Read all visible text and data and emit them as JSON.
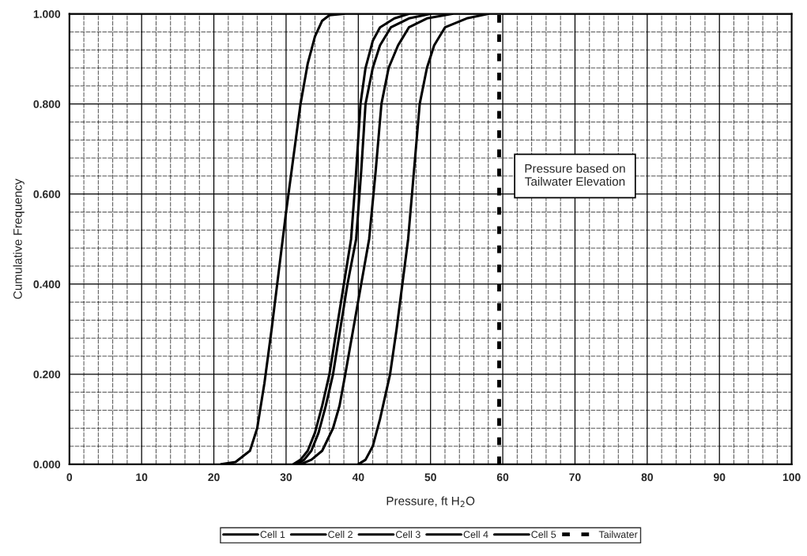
{
  "chart_data": {
    "type": "line",
    "xlabel": "Pressure, ft H$_{2}$O",
    "ylabel": "Cumulative Frequency",
    "xlim": [
      0,
      100
    ],
    "xticks": [
      0,
      10,
      20,
      30,
      40,
      50,
      60,
      70,
      80,
      90,
      100
    ],
    "ylim": [
      0,
      1
    ],
    "yticks": [
      {
        "value": 0,
        "label": "0.000"
      },
      {
        "value": 0.2,
        "label": "0.200"
      },
      {
        "value": 0.4,
        "label": "0.400"
      },
      {
        "value": 0.6,
        "label": "0.600"
      },
      {
        "value": 0.8,
        "label": "0.800"
      },
      {
        "value": 1,
        "label": "1.000"
      }
    ],
    "grid": true,
    "legend": "bottom",
    "marker": "none",
    "line_style": "solid",
    "series": [
      {
        "name": "Cell 1",
        "color": "#000000",
        "x": [
          21,
          23,
          25,
          26,
          27,
          28,
          29,
          30,
          31,
          32,
          33,
          34,
          35,
          36,
          38
        ],
        "values": [
          0,
          0.005,
          0.03,
          0.08,
          0.18,
          0.3,
          0.43,
          0.56,
          0.68,
          0.8,
          0.89,
          0.95,
          0.985,
          0.997,
          1
        ]
      },
      {
        "name": "Cell 2",
        "color": "#000000",
        "x": [
          31,
          32,
          33,
          34,
          35,
          36,
          37,
          38,
          39,
          39.7,
          40.3,
          41,
          42,
          43,
          45,
          47
        ],
        "values": [
          0,
          0.01,
          0.03,
          0.07,
          0.13,
          0.2,
          0.3,
          0.4,
          0.5,
          0.65,
          0.8,
          0.88,
          0.94,
          0.97,
          0.99,
          1
        ]
      },
      {
        "name": "Cell 3",
        "color": "#000000",
        "x": [
          31.5,
          32.5,
          33.5,
          34.5,
          35.5,
          36.5,
          37.5,
          38.5,
          39.7,
          40.4,
          41,
          42,
          43,
          44.5,
          47,
          50
        ],
        "values": [
          0,
          0.01,
          0.03,
          0.07,
          0.13,
          0.2,
          0.3,
          0.4,
          0.5,
          0.65,
          0.8,
          0.88,
          0.93,
          0.97,
          0.99,
          1
        ]
      },
      {
        "name": "Cell 4",
        "color": "#000000",
        "x": [
          32,
          33.5,
          35,
          36.5,
          37.4,
          38.2,
          39.3,
          40.4,
          41.5,
          42.4,
          43.2,
          44.2,
          45.5,
          47,
          49.5,
          53
        ],
        "values": [
          0,
          0.01,
          0.03,
          0.08,
          0.13,
          0.2,
          0.3,
          0.4,
          0.5,
          0.65,
          0.8,
          0.88,
          0.93,
          0.97,
          0.99,
          1
        ]
      },
      {
        "name": "Cell 5",
        "color": "#000000",
        "x": [
          40,
          41,
          42,
          43,
          43.7,
          44.4,
          45.3,
          46.1,
          46.9,
          47.7,
          48.5,
          49.5,
          50.5,
          52,
          55,
          58
        ],
        "values": [
          0,
          0.01,
          0.04,
          0.1,
          0.15,
          0.2,
          0.3,
          0.4,
          0.5,
          0.65,
          0.8,
          0.88,
          0.93,
          0.97,
          0.99,
          1
        ]
      }
    ],
    "ref_lines": [
      {
        "axis": "x",
        "value": 59.5,
        "label": "Tailwater",
        "color": "#000000",
        "line_style": "dashed"
      }
    ],
    "annotations": [
      "Pressure based on\nTailwater Elevation"
    ]
  }
}
